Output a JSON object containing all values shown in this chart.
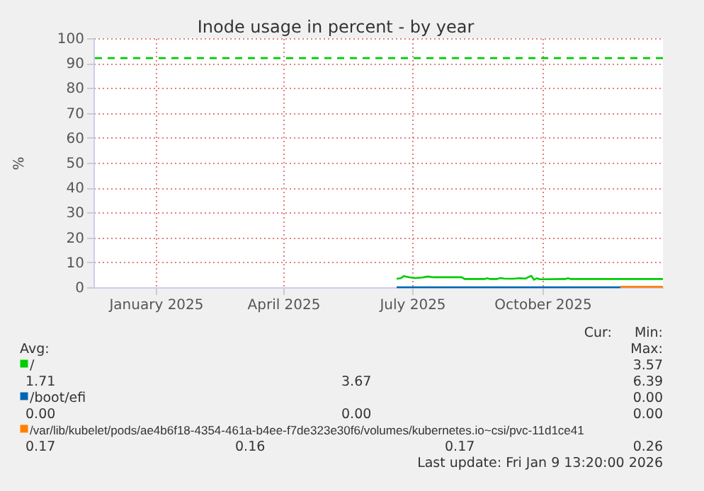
{
  "chart_data": {
    "type": "line",
    "title": "Inode usage in percent - by year",
    "ylabel": "%",
    "xlim": [
      "2024-12-03",
      "2026-01-09"
    ],
    "xticks": [
      {
        "value": "2025-01-16",
        "label": "January 2025"
      },
      {
        "value": "2025-04-16",
        "label": "April 2025"
      },
      {
        "value": "2025-07-16",
        "label": "July 2025"
      },
      {
        "value": "2025-10-16",
        "label": "October 2025"
      }
    ],
    "ylim": [
      0,
      100
    ],
    "yticks": [
      0,
      10,
      20,
      30,
      40,
      50,
      60,
      70,
      80,
      90,
      100
    ],
    "grid": true,
    "legend": "bottom",
    "marker": "none",
    "line_style": "solid",
    "series": [
      {
        "name": "/",
        "color": "#00cc00",
        "x": [
          "2025-07-05",
          "2025-07-08",
          "2025-07-10",
          "2025-07-14",
          "2025-07-18",
          "2025-07-23",
          "2025-07-27",
          "2025-07-31",
          "2025-08-20",
          "2025-08-22",
          "2025-09-05",
          "2025-09-07",
          "2025-09-09",
          "2025-09-14",
          "2025-09-16",
          "2025-09-19",
          "2025-09-25",
          "2025-09-30",
          "2025-10-04",
          "2025-10-08",
          "2025-10-10",
          "2025-10-12",
          "2025-10-14",
          "2025-11-01",
          "2025-11-03",
          "2025-11-05",
          "2026-01-09"
        ],
        "values": [
          3.4,
          3.6,
          4.5,
          4.0,
          3.7,
          3.9,
          4.3,
          4.0,
          4.0,
          3.3,
          3.3,
          3.6,
          3.3,
          3.3,
          3.7,
          3.5,
          3.4,
          3.6,
          3.5,
          4.6,
          3.0,
          3.6,
          3.2,
          3.3,
          3.6,
          3.3,
          3.3
        ]
      },
      {
        "name": "/boot/efi",
        "color": "#0066b3",
        "x": [
          "2025-07-05",
          "2025-12-10"
        ],
        "values": [
          0,
          0
        ]
      },
      {
        "name": "/var/lib/kubelet/pods/ae4b6f18-4354-461a-b4ee-f7de323e30f6/volumes/kubernetes.io~csi/pvc-11d1ce41",
        "color": "#ff8000",
        "x": [
          "2025-12-10",
          "2026-01-09"
        ],
        "values": [
          0.17,
          0.17
        ]
      }
    ],
    "ref_lines": [
      {
        "axis": "y",
        "value": 92,
        "color": "#00cc00",
        "line_style": "dashed"
      }
    ],
    "annotations": [
      "Cur:",
      "Min:",
      "Avg:",
      "Max:",
      "3.57",
      "1.71",
      "3.67",
      "6.39",
      "0.00",
      "0.00",
      "0.00",
      "0.00",
      "0.17",
      "0.16",
      "0.17",
      "0.26",
      "Last update: Fri Jan  9 13:20:00 2026"
    ]
  }
}
